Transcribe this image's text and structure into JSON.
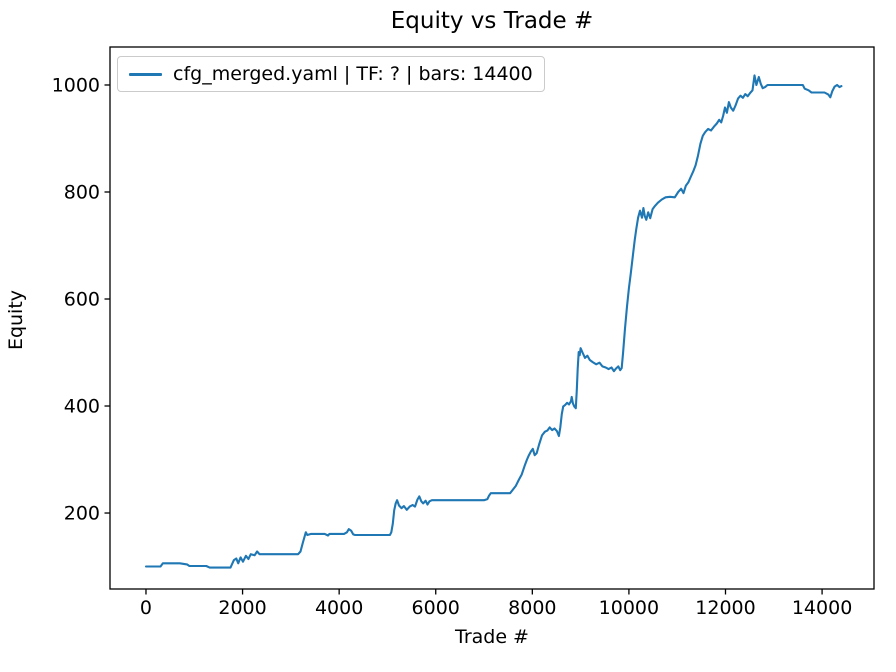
{
  "title": "Equity vs Trade #",
  "legend": {
    "label": "cfg_merged.yaml | TF: ? | bars: 14400",
    "line_color": "#1f77b4"
  },
  "colors": {
    "line": "#1f77b4",
    "axis": "#000000",
    "background": "#ffffff",
    "legend_border": "#cbcbcb"
  },
  "chart_data": {
    "type": "line",
    "title": "Equity vs Trade #",
    "xlabel": "Trade #",
    "ylabel": "Equity",
    "xlim": [
      -745,
      15075
    ],
    "ylim": [
      58,
      1071
    ],
    "x_ticks": [
      0,
      2000,
      4000,
      6000,
      8000,
      10000,
      12000,
      14000
    ],
    "y_ticks": [
      200,
      400,
      600,
      800,
      1000
    ],
    "grid": false,
    "legend_position": "upper left",
    "series": [
      {
        "name": "cfg_merged.yaml | TF: ? | bars: 14400",
        "color": "#1f77b4",
        "points": [
          [
            0,
            100
          ],
          [
            300,
            100
          ],
          [
            350,
            106
          ],
          [
            700,
            106
          ],
          [
            850,
            104
          ],
          [
            900,
            101
          ],
          [
            1250,
            101
          ],
          [
            1320,
            98
          ],
          [
            1750,
            98
          ],
          [
            1820,
            112
          ],
          [
            1870,
            115
          ],
          [
            1910,
            106
          ],
          [
            1960,
            117
          ],
          [
            2010,
            109
          ],
          [
            2070,
            120
          ],
          [
            2120,
            114
          ],
          [
            2170,
            123
          ],
          [
            2250,
            121
          ],
          [
            2300,
            128
          ],
          [
            2350,
            123
          ],
          [
            2700,
            123
          ],
          [
            3150,
            123
          ],
          [
            3200,
            128
          ],
          [
            3250,
            145
          ],
          [
            3290,
            158
          ],
          [
            3310,
            164
          ],
          [
            3340,
            159
          ],
          [
            3420,
            161
          ],
          [
            3700,
            161
          ],
          [
            3770,
            158
          ],
          [
            3800,
            161
          ],
          [
            4100,
            161
          ],
          [
            4160,
            164
          ],
          [
            4200,
            170
          ],
          [
            4250,
            167
          ],
          [
            4290,
            160
          ],
          [
            4330,
            159
          ],
          [
            4700,
            159
          ],
          [
            5050,
            159
          ],
          [
            5080,
            164
          ],
          [
            5110,
            180
          ],
          [
            5140,
            205
          ],
          [
            5170,
            218
          ],
          [
            5200,
            224
          ],
          [
            5240,
            214
          ],
          [
            5290,
            209
          ],
          [
            5340,
            213
          ],
          [
            5400,
            206
          ],
          [
            5460,
            212
          ],
          [
            5520,
            215
          ],
          [
            5570,
            212
          ],
          [
            5620,
            225
          ],
          [
            5660,
            231
          ],
          [
            5700,
            222
          ],
          [
            5740,
            218
          ],
          [
            5790,
            223
          ],
          [
            5830,
            216
          ],
          [
            5870,
            222
          ],
          [
            5920,
            224
          ],
          [
            6300,
            224
          ],
          [
            7000,
            224
          ],
          [
            7070,
            226
          ],
          [
            7100,
            232
          ],
          [
            7140,
            237
          ],
          [
            7400,
            237
          ],
          [
            7540,
            237
          ],
          [
            7600,
            244
          ],
          [
            7660,
            251
          ],
          [
            7720,
            262
          ],
          [
            7780,
            272
          ],
          [
            7840,
            288
          ],
          [
            7890,
            300
          ],
          [
            7930,
            308
          ],
          [
            7970,
            315
          ],
          [
            8010,
            320
          ],
          [
            8050,
            308
          ],
          [
            8090,
            312
          ],
          [
            8140,
            328
          ],
          [
            8200,
            345
          ],
          [
            8260,
            352
          ],
          [
            8310,
            354
          ],
          [
            8360,
            360
          ],
          [
            8410,
            355
          ],
          [
            8460,
            358
          ],
          [
            8510,
            353
          ],
          [
            8550,
            344
          ],
          [
            8580,
            360
          ],
          [
            8610,
            385
          ],
          [
            8640,
            399
          ],
          [
            8680,
            402
          ],
          [
            8720,
            406
          ],
          [
            8760,
            403
          ],
          [
            8800,
            409
          ],
          [
            8815,
            417
          ],
          [
            8840,
            405
          ],
          [
            8870,
            399
          ],
          [
            8900,
            396
          ],
          [
            8920,
            430
          ],
          [
            8940,
            470
          ],
          [
            8960,
            501
          ],
          [
            8980,
            495
          ],
          [
            9000,
            508
          ],
          [
            9040,
            500
          ],
          [
            9090,
            490
          ],
          [
            9140,
            494
          ],
          [
            9190,
            486
          ],
          [
            9250,
            482
          ],
          [
            9320,
            478
          ],
          [
            9390,
            481
          ],
          [
            9450,
            474
          ],
          [
            9520,
            472
          ],
          [
            9580,
            469
          ],
          [
            9640,
            472
          ],
          [
            9690,
            465
          ],
          [
            9730,
            470
          ],
          [
            9780,
            474
          ],
          [
            9820,
            467
          ],
          [
            9850,
            471
          ],
          [
            9880,
            500
          ],
          [
            9920,
            545
          ],
          [
            9960,
            586
          ],
          [
            10000,
            620
          ],
          [
            10040,
            648
          ],
          [
            10080,
            680
          ],
          [
            10120,
            710
          ],
          [
            10150,
            730
          ],
          [
            10190,
            752
          ],
          [
            10230,
            765
          ],
          [
            10270,
            752
          ],
          [
            10300,
            770
          ],
          [
            10330,
            755
          ],
          [
            10360,
            748
          ],
          [
            10400,
            762
          ],
          [
            10440,
            751
          ],
          [
            10490,
            768
          ],
          [
            10540,
            774
          ],
          [
            10600,
            780
          ],
          [
            10680,
            786
          ],
          [
            10760,
            790
          ],
          [
            10850,
            791
          ],
          [
            10950,
            790
          ],
          [
            11020,
            800
          ],
          [
            11080,
            806
          ],
          [
            11130,
            798
          ],
          [
            11180,
            812
          ],
          [
            11230,
            818
          ],
          [
            11280,
            828
          ],
          [
            11330,
            838
          ],
          [
            11380,
            850
          ],
          [
            11430,
            868
          ],
          [
            11480,
            890
          ],
          [
            11530,
            905
          ],
          [
            11580,
            912
          ],
          [
            11640,
            918
          ],
          [
            11700,
            915
          ],
          [
            11760,
            922
          ],
          [
            11820,
            928
          ],
          [
            11870,
            935
          ],
          [
            11910,
            930
          ],
          [
            11950,
            942
          ],
          [
            11990,
            958
          ],
          [
            12030,
            948
          ],
          [
            12070,
            968
          ],
          [
            12110,
            958
          ],
          [
            12160,
            952
          ],
          [
            12210,
            962
          ],
          [
            12260,
            975
          ],
          [
            12310,
            980
          ],
          [
            12360,
            976
          ],
          [
            12410,
            983
          ],
          [
            12460,
            979
          ],
          [
            12510,
            985
          ],
          [
            12560,
            990
          ],
          [
            12600,
            1018
          ],
          [
            12640,
            1000
          ],
          [
            12690,
            1015
          ],
          [
            12730,
            1002
          ],
          [
            12770,
            994
          ],
          [
            12820,
            996
          ],
          [
            12870,
            1000
          ],
          [
            12950,
            1000
          ],
          [
            13300,
            1000
          ],
          [
            13600,
            1000
          ],
          [
            13640,
            993
          ],
          [
            13720,
            990
          ],
          [
            13780,
            986
          ],
          [
            13900,
            986
          ],
          [
            14050,
            986
          ],
          [
            14130,
            982
          ],
          [
            14170,
            977
          ],
          [
            14210,
            988
          ],
          [
            14260,
            997
          ],
          [
            14310,
            1000
          ],
          [
            14360,
            996
          ],
          [
            14400,
            998
          ]
        ]
      }
    ]
  }
}
